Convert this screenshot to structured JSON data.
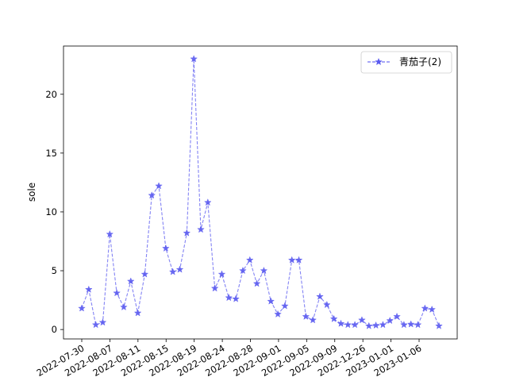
{
  "chart_data": {
    "type": "line",
    "title": "",
    "xlabel": "",
    "ylabel": "sole",
    "x_tick_labels": [
      "2022-07-30",
      "2022-08-07",
      "2022-08-11",
      "2022-08-15",
      "2022-08-19",
      "2022-08-24",
      "2022-08-28",
      "2022-09-01",
      "2022-09-05",
      "2022-09-09",
      "2022-12-26",
      "2023-01-01",
      "2023-01-06"
    ],
    "y_ticks": [
      0,
      5,
      10,
      15,
      20
    ],
    "ylim": [
      -0.8,
      24.1
    ],
    "grid": false,
    "legend_position": "top-right",
    "series": [
      {
        "name": "青茄子(2)",
        "color": "#5a5af0",
        "line_style": "dashed",
        "marker": "star",
        "values": [
          1.8,
          3.4,
          0.4,
          0.6,
          8.1,
          3.1,
          1.9,
          4.1,
          1.4,
          4.7,
          11.4,
          12.2,
          6.9,
          4.9,
          5.1,
          8.2,
          23.0,
          8.5,
          10.8,
          3.5,
          4.7,
          2.7,
          2.6,
          5.0,
          5.9,
          3.9,
          5.0,
          2.4,
          1.3,
          2.0,
          5.9,
          5.9,
          1.1,
          0.8,
          2.8,
          2.1,
          0.9,
          0.5,
          0.4,
          0.4,
          0.8,
          0.3,
          0.35,
          0.4,
          0.75,
          1.1,
          0.4,
          0.45,
          0.4,
          1.8,
          1.7,
          0.3
        ]
      }
    ]
  }
}
